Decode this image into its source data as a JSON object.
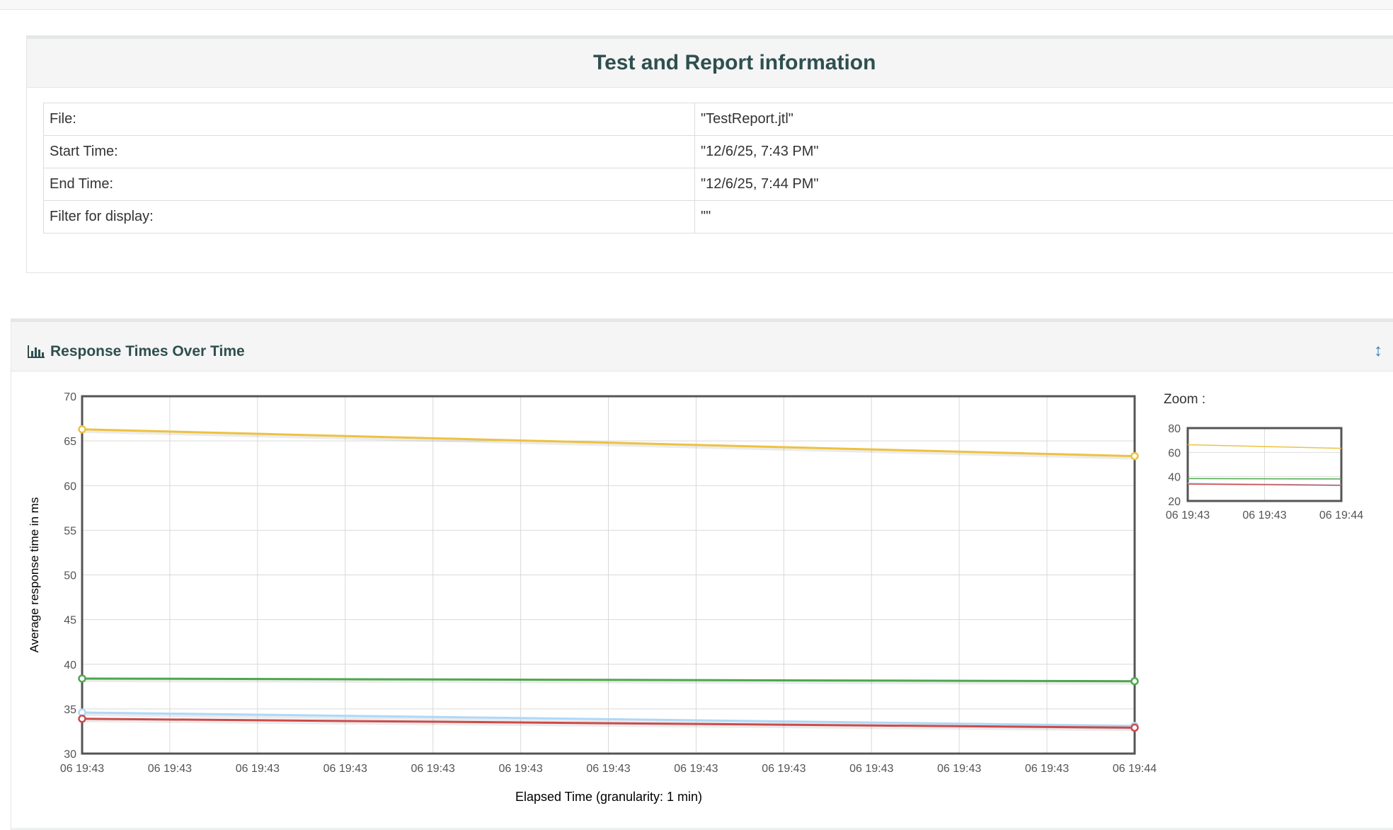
{
  "info": {
    "title": "Test and Report information",
    "rows": [
      {
        "key": "File:",
        "value": "\"TestReport.jtl\""
      },
      {
        "key": "Start Time:",
        "value": "\"12/6/25, 7:43 PM\""
      },
      {
        "key": "End Time:",
        "value": "\"12/6/25, 7:44 PM\""
      },
      {
        "key": "Filter for display:",
        "value": "\"\""
      }
    ]
  },
  "panel": {
    "title": "Response Times Over Time",
    "icon": "bar-chart-icon",
    "toggle_icon": "vertical-resize-icon"
  },
  "chart_data": {
    "type": "line",
    "ylabel": "Average response time in ms",
    "xlabel": "Elapsed Time (granularity: 1 min)",
    "ylim": [
      30,
      70
    ],
    "yticks": [
      30,
      35,
      40,
      45,
      50,
      55,
      60,
      65,
      70
    ],
    "xticks": [
      "06 19:43",
      "06 19:43",
      "06 19:43",
      "06 19:43",
      "06 19:43",
      "06 19:43",
      "06 19:43",
      "06 19:43",
      "06 19:43",
      "06 19:43",
      "06 19:43",
      "06 19:43",
      "06 19:44"
    ],
    "grid": true,
    "series": [
      {
        "color": "#edc240",
        "values": [
          66.3,
          63.3
        ]
      },
      {
        "color": "#4da74d",
        "values": [
          38.4,
          38.1
        ]
      },
      {
        "color": "#afd8f8",
        "values": [
          34.6,
          33.1
        ]
      },
      {
        "color": "#cb4b4b",
        "values": [
          33.9,
          32.9
        ]
      }
    ],
    "zoom": {
      "label": "Zoom :",
      "ylim": [
        20,
        80
      ],
      "yticks": [
        20,
        40,
        60,
        80
      ],
      "xticks": [
        "06 19:43",
        "06 19:43",
        "06 19:44"
      ]
    }
  }
}
